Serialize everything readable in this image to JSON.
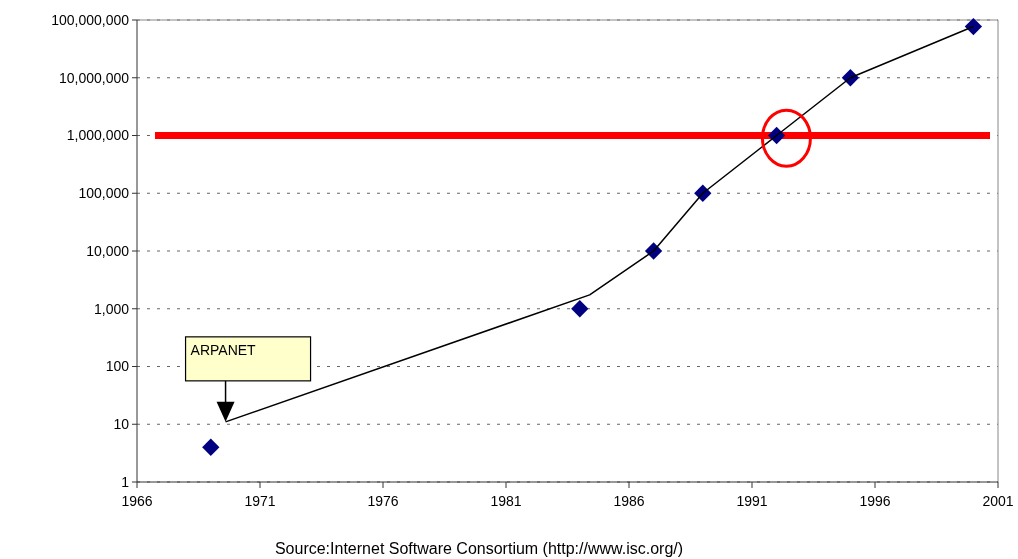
{
  "chart_data": {
    "type": "scatter",
    "log": "y",
    "xlim": [
      1966,
      2001
    ],
    "xticks": [
      1966,
      1971,
      1976,
      1981,
      1986,
      1991,
      1996,
      2001
    ],
    "ylim": [
      1,
      100000000
    ],
    "yticks": [
      {
        "value": 1,
        "label": "1"
      },
      {
        "value": 10,
        "label": "10"
      },
      {
        "value": 100,
        "label": "100"
      },
      {
        "value": 1000,
        "label": "1,000"
      },
      {
        "value": 10000,
        "label": "10,000"
      },
      {
        "value": 100000,
        "label": "100,000"
      },
      {
        "value": 1000000,
        "label": "1,000,000"
      },
      {
        "value": 10000000,
        "label": "10,000,000"
      },
      {
        "value": 100000000,
        "label": "100,000,000"
      }
    ],
    "grid": "y",
    "series": [
      {
        "color": "#000080",
        "marker": "diamond",
        "x": [
          1969,
          1984,
          1987,
          1989,
          1992,
          1995,
          2000
        ],
        "values": [
          4,
          1000,
          10000,
          100000,
          1000000,
          10000000,
          77000000
        ]
      },
      {
        "type": "line",
        "color": "#000000",
        "marker": "none",
        "x": [
          1969.6,
          1984.4,
          1987,
          1989,
          1992,
          1995,
          2000
        ],
        "values": [
          11,
          1740,
          10000,
          100000,
          1000000,
          10000000,
          77000000
        ]
      }
    ],
    "ref_lines": [
      {
        "axis": "y",
        "value": 1000000,
        "color": "#ff0000"
      }
    ],
    "annotations": [
      "ARPANET",
      "Source:Internet Software Consortium (http://www.isc.org/)"
    ]
  }
}
